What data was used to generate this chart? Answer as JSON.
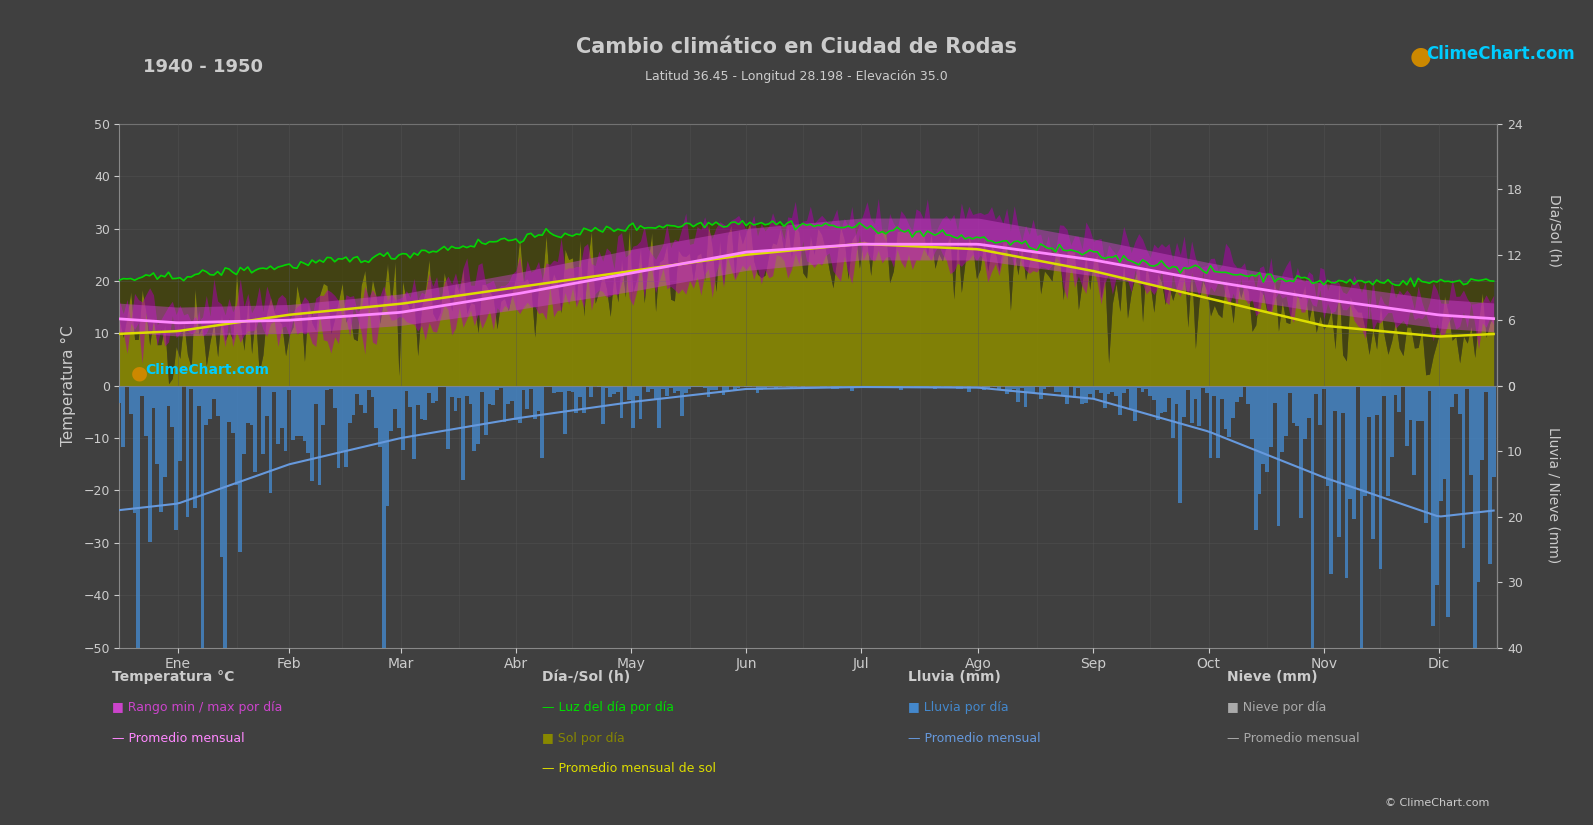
{
  "title": "Cambio climático en Ciudad de Rodas",
  "subtitle": "Latitud 36.45 - Longitud 28.198 - Elevación 35.0",
  "year_range": "1940 - 1950",
  "bg_color": "#404040",
  "plot_bg_color": "#404040",
  "text_color": "#cccccc",
  "months": [
    "Ene",
    "Feb",
    "Mar",
    "Abr",
    "May",
    "Jun",
    "Jul",
    "Ago",
    "Sep",
    "Oct",
    "Nov",
    "Dic"
  ],
  "days_in_month": [
    31,
    28,
    31,
    30,
    31,
    30,
    31,
    31,
    30,
    31,
    30,
    31
  ],
  "temp_avg": [
    12.0,
    12.5,
    14.0,
    17.5,
    21.5,
    25.5,
    27.0,
    27.0,
    24.0,
    20.0,
    16.5,
    13.5
  ],
  "temp_max_avg": [
    15.0,
    15.5,
    17.5,
    21.5,
    26.0,
    30.0,
    32.0,
    32.0,
    28.0,
    23.5,
    19.5,
    16.5
  ],
  "temp_min_avg": [
    9.5,
    10.0,
    11.5,
    14.5,
    18.0,
    22.0,
    24.0,
    24.0,
    21.0,
    17.5,
    14.0,
    11.0
  ],
  "daylight_avg": [
    10.0,
    11.0,
    12.0,
    13.5,
    14.5,
    15.0,
    14.5,
    13.5,
    12.0,
    10.5,
    9.5,
    9.5
  ],
  "sunshine_avg": [
    5.0,
    6.5,
    7.5,
    9.0,
    10.5,
    12.0,
    13.0,
    12.5,
    10.5,
    8.0,
    5.5,
    4.5
  ],
  "rain_avg_mm": [
    18.0,
    12.0,
    8.0,
    5.0,
    2.5,
    0.5,
    0.2,
    0.3,
    2.0,
    7.0,
    14.0,
    20.0
  ],
  "snow_avg_mm": [
    0.0,
    0.0,
    0.0,
    0.0,
    0.0,
    0.0,
    0.0,
    0.0,
    0.0,
    0.0,
    0.0,
    0.0
  ],
  "ylim_temp": [
    -50,
    50
  ],
  "ylim_sol": [
    0,
    24
  ],
  "rain_scale": 1.25,
  "sol_scale": 2.0833,
  "colors": {
    "daylight_line": "#00dd00",
    "sunshine_fill_dark": "#7a7a00",
    "sunshine_fill_bright": "#aaaa00",
    "sunshine_avg_line": "#dddd00",
    "temp_range_fill": "#cc00cc",
    "temp_avg_fill": "#e060e0",
    "temp_avg_line": "#ff80ff",
    "rain_bar": "#4488cc",
    "rain_avg_line": "#6699cc",
    "snow_bar": "#aaaaaa",
    "snow_avg_line": "#bbbbbb",
    "grid": "#555555",
    "spine": "#888888"
  },
  "logo_color_cyan": "#00ccff",
  "logo_color_yellow": "#dddd00",
  "logo_color_magenta": "#cc00cc"
}
